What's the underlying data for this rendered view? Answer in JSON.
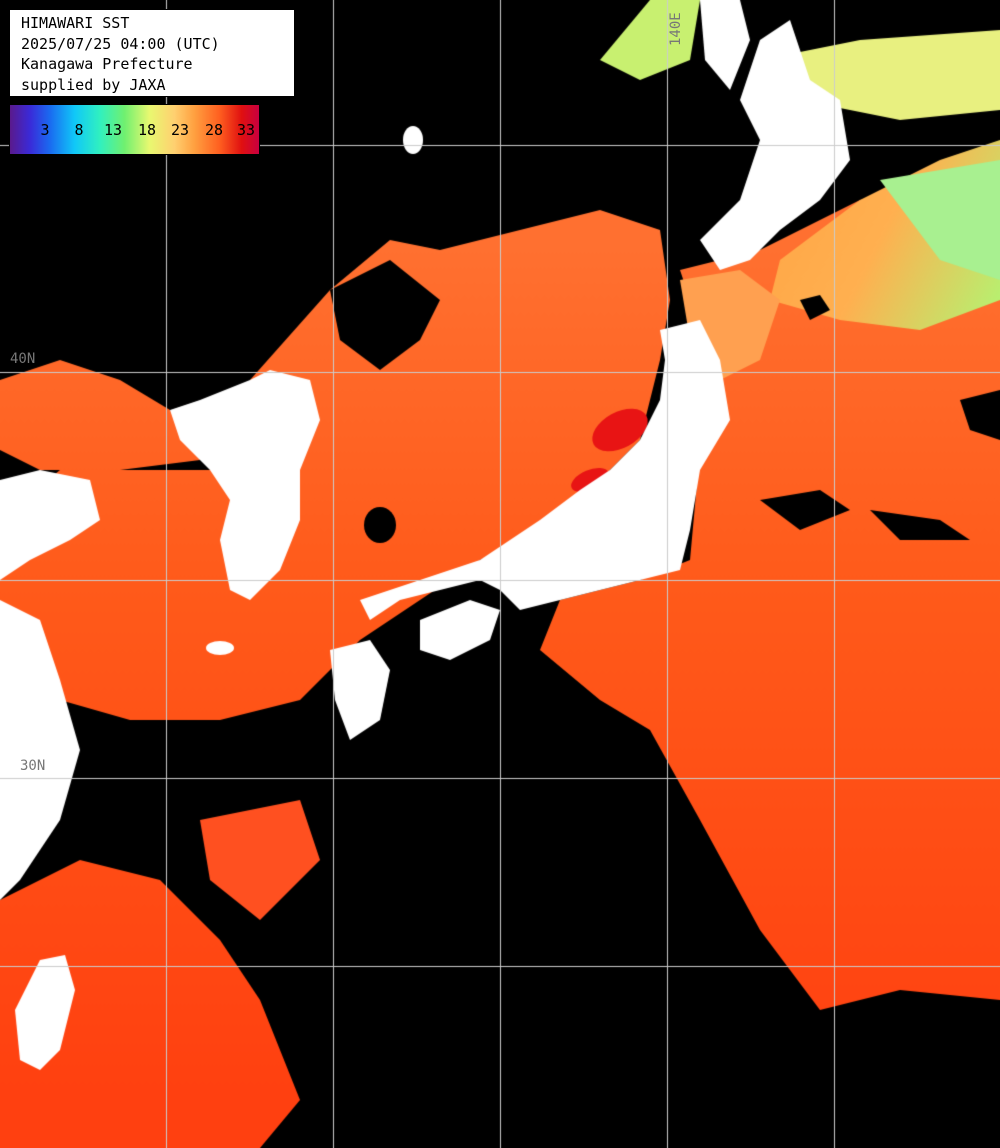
{
  "title": {
    "line1": "HIMAWARI SST",
    "line2": "2025/07/25 04:00 (UTC)",
    "line3": "Kanagawa Prefecture",
    "line4": "supplied by JAXA"
  },
  "legend": {
    "ticks": [
      "3",
      "8",
      "13",
      "18",
      "23",
      "28",
      "33"
    ],
    "unit_hint": "",
    "min": 3,
    "max": 33
  },
  "grid_labels": {
    "lat_40": "40N",
    "lon_140": "140E",
    "lat_30": "30N"
  },
  "colors": {
    "land": "#ffffff",
    "cloud_no_data": "#000000",
    "gridline": "#cccccc",
    "sst_warm": "#ff5a1a",
    "sst_hot": "#e81414",
    "sst_cool": "#ffb050",
    "sst_cold": "#b8f070"
  }
}
